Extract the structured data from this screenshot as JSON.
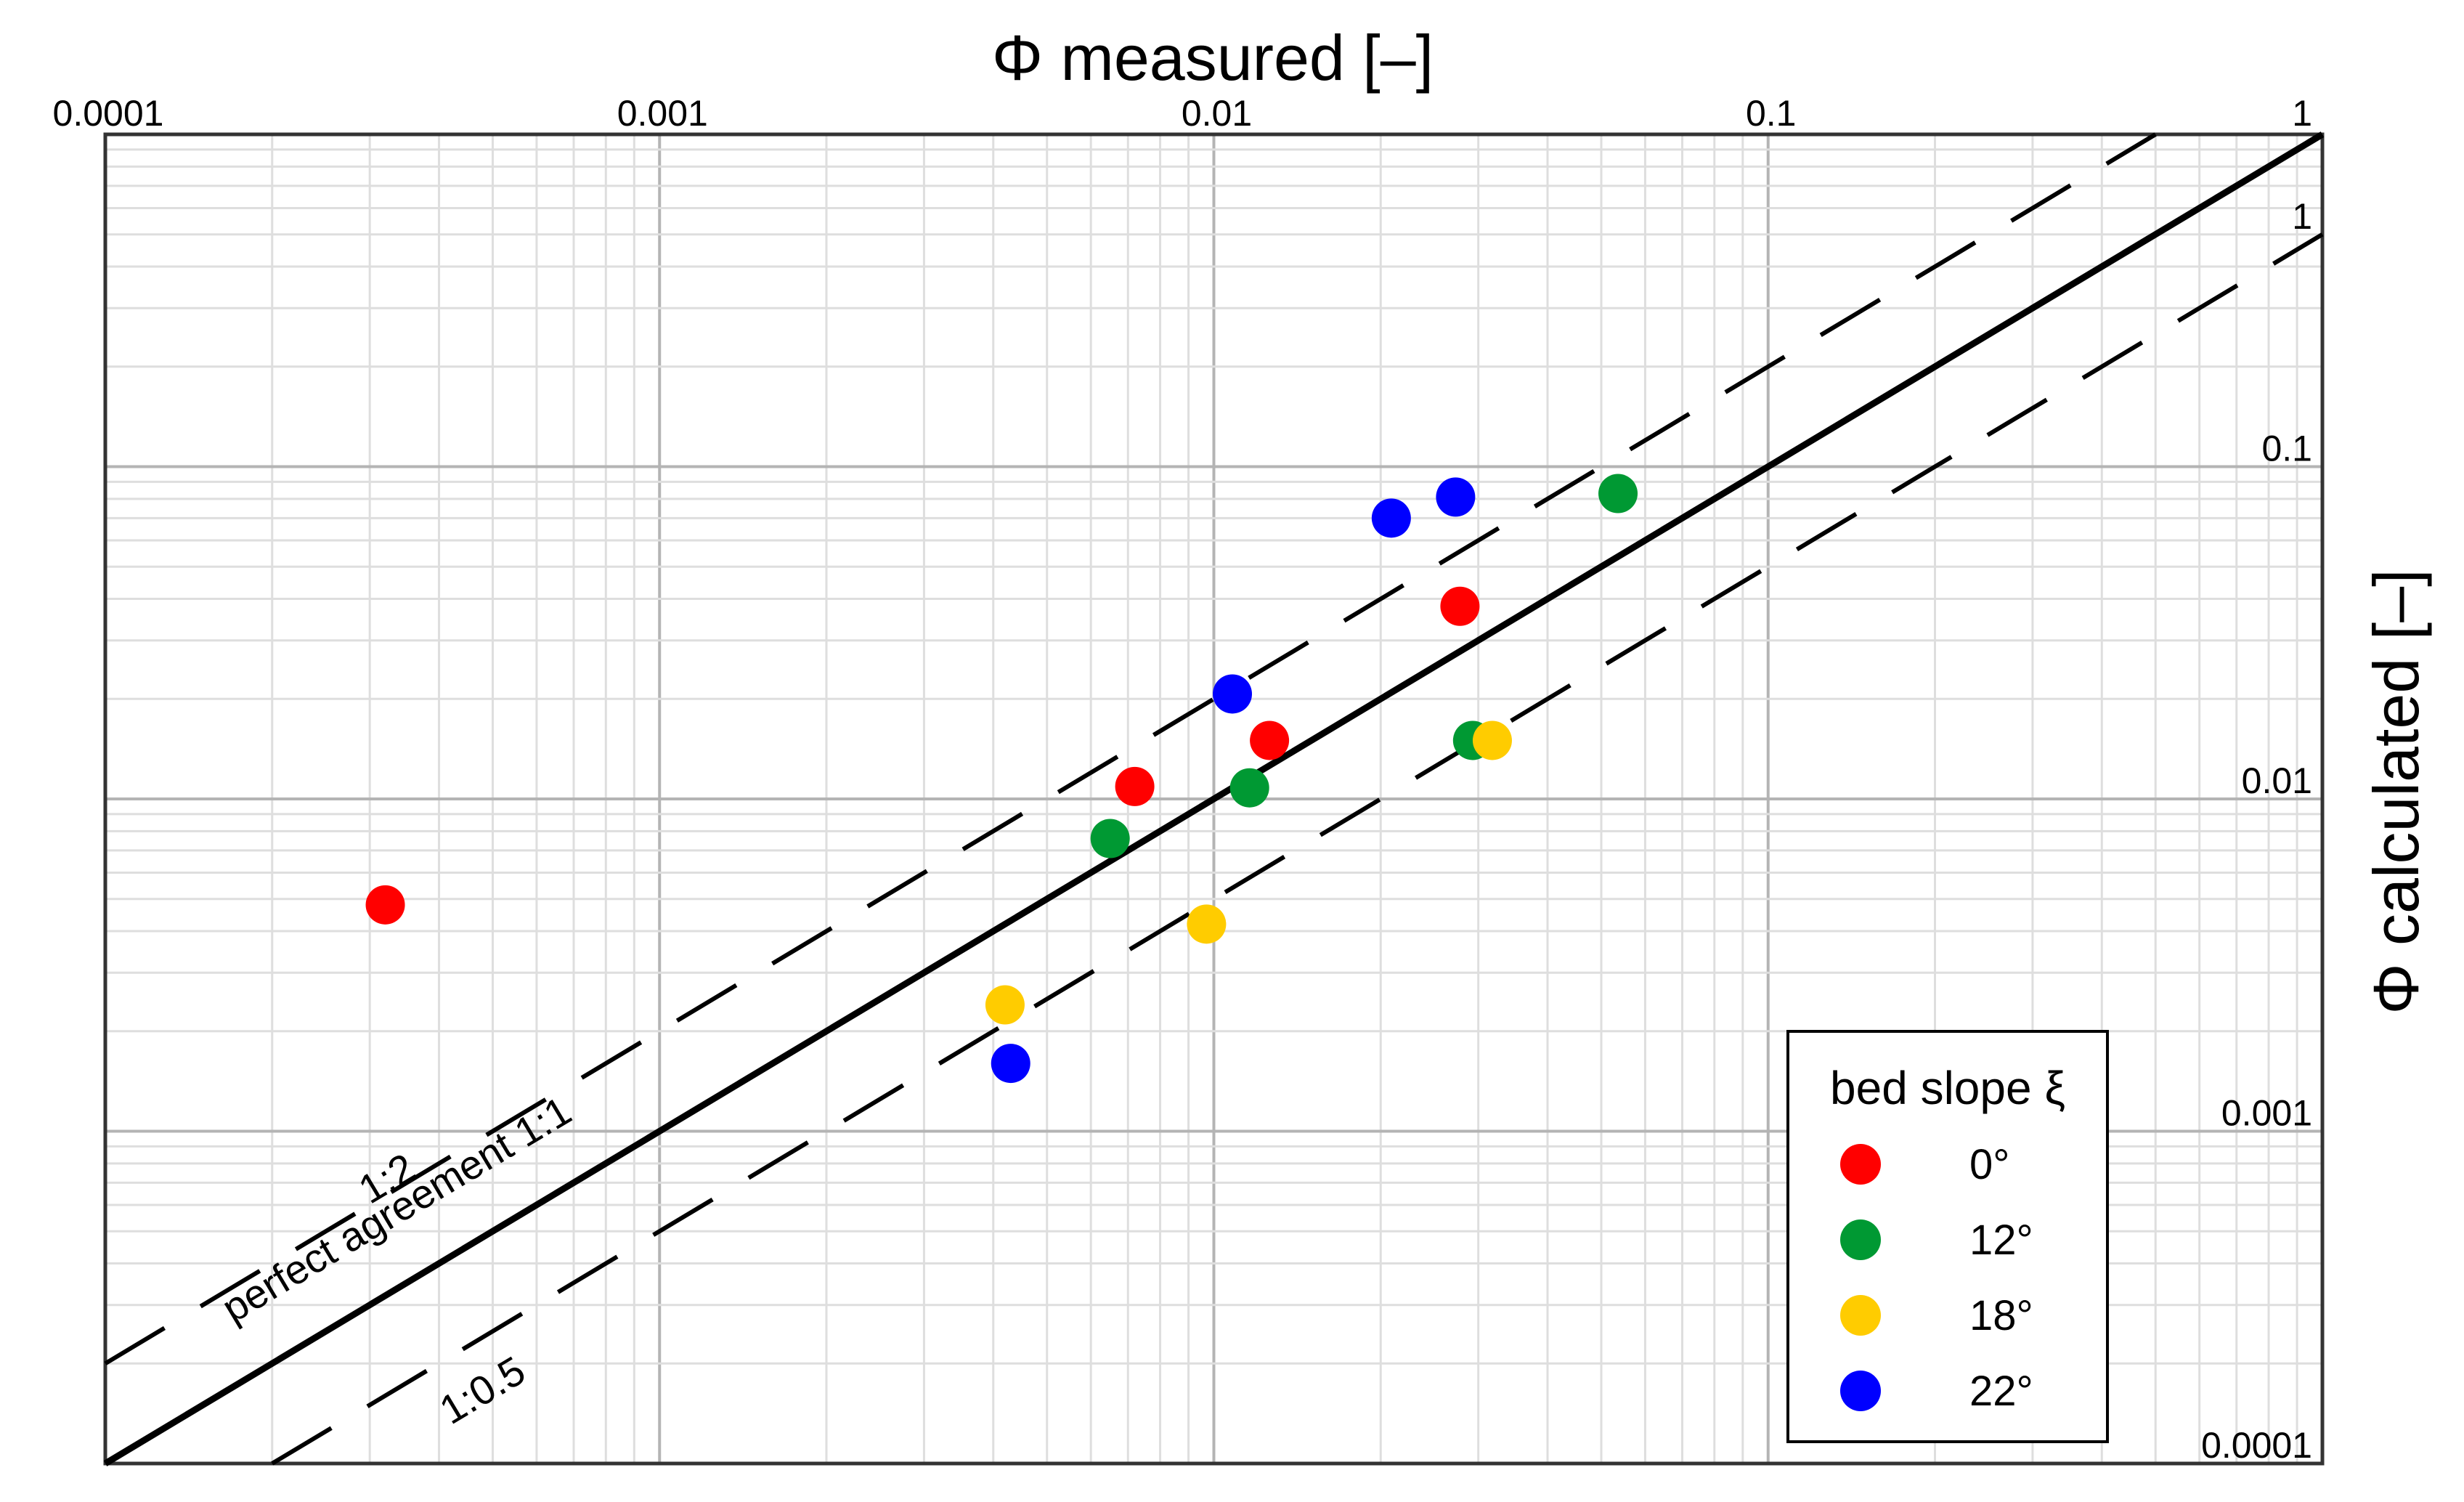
{
  "chart_data": {
    "type": "scatter",
    "title": "",
    "xlabel": "Φ measured [–]",
    "ylabel": "Φ calculated [–]",
    "x_scale": "log",
    "y_scale": "log",
    "xlim": [
      0.0001,
      1
    ],
    "ylim": [
      0.0001,
      1
    ],
    "grid": true,
    "x_ticks": [
      {
        "value": 0.0001,
        "label": "0.0001"
      },
      {
        "value": 0.001,
        "label": "0.001"
      },
      {
        "value": 0.01,
        "label": "0.01"
      },
      {
        "value": 0.1,
        "label": "0.1"
      },
      {
        "value": 1,
        "label": "1"
      }
    ],
    "y_ticks": [
      {
        "value": 0.0001,
        "label": "0.0001"
      },
      {
        "value": 0.001,
        "label": "0.001"
      },
      {
        "value": 0.01,
        "label": "0.01"
      },
      {
        "value": 0.1,
        "label": "0.1"
      },
      {
        "value": 1,
        "label": "1"
      }
    ],
    "reference_lines": [
      {
        "name": "perfect agreement",
        "label": "perfect agreement 1:1",
        "ratio": 1,
        "style": "solid"
      },
      {
        "name": "1:2",
        "label": "1:2",
        "ratio": 2,
        "style": "dashed"
      },
      {
        "name": "1:0.5",
        "label": "1:0.5",
        "ratio": 0.5,
        "style": "dashed"
      }
    ],
    "legend": {
      "title": "bed slope ξ",
      "position": "bottom-right"
    },
    "series": [
      {
        "name": "0°",
        "color": "#ff0000",
        "points": [
          {
            "x": 0.00032,
            "y": 0.0048
          },
          {
            "x": 0.0072,
            "y": 0.0109
          },
          {
            "x": 0.0126,
            "y": 0.015
          },
          {
            "x": 0.0278,
            "y": 0.038
          }
        ]
      },
      {
        "name": "12°",
        "color": "#009933",
        "points": [
          {
            "x": 0.0065,
            "y": 0.0076
          },
          {
            "x": 0.0116,
            "y": 0.0108
          },
          {
            "x": 0.0293,
            "y": 0.015
          },
          {
            "x": 0.0536,
            "y": 0.083
          }
        ]
      },
      {
        "name": "18°",
        "color": "#ffcc00",
        "points": [
          {
            "x": 0.0042,
            "y": 0.0024
          },
          {
            "x": 0.0097,
            "y": 0.0042
          },
          {
            "x": 0.0318,
            "y": 0.015
          }
        ]
      },
      {
        "name": "22°",
        "color": "#0000ff",
        "points": [
          {
            "x": 0.0043,
            "y": 0.0016
          },
          {
            "x": 0.0108,
            "y": 0.0207
          },
          {
            "x": 0.0209,
            "y": 0.07
          },
          {
            "x": 0.0273,
            "y": 0.081
          }
        ]
      }
    ]
  }
}
